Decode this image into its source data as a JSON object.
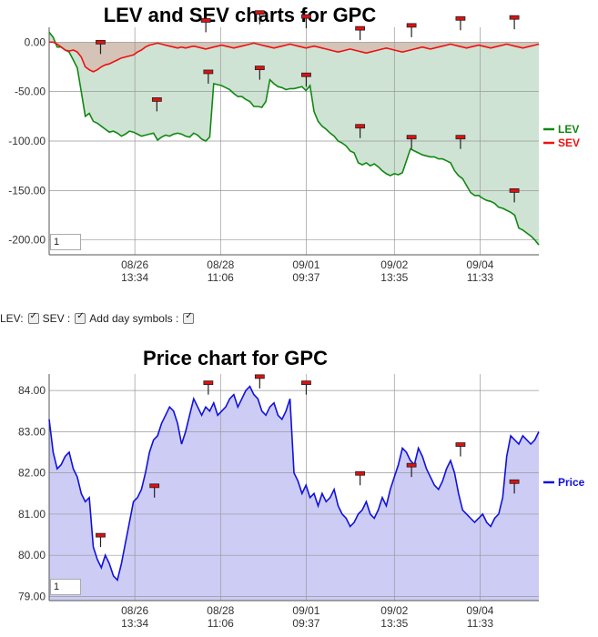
{
  "titles": {
    "top": "LEV and SEV charts for GPC",
    "bottom": "Price chart for GPC"
  },
  "controls": {
    "lev_label": "LEV:",
    "sev_label": "SEV :",
    "day_symbols_label": "Add day symbols :",
    "lev_checked": true,
    "sev_checked": true,
    "day_symbols_checked": true
  },
  "inputs": {
    "top_value": "1",
    "bottom_value": "1"
  },
  "colors": {
    "lev": "#118811",
    "sev": "#ee1111",
    "price": "#1111dd",
    "lev_fill": "#cfe3d4",
    "sev_fill": "#d4bfb2",
    "price_fill": "#ccccf5",
    "marker": "#dd1111"
  },
  "chart_data": [
    {
      "type": "line",
      "title": "LEV and SEV charts for GPC",
      "ylim": [
        -215,
        15
      ],
      "y_ticks": [
        "0.00",
        "-50.00",
        "-100.00",
        "-150.00",
        "-200.00"
      ],
      "x_ticks": [
        [
          "08/26",
          "13:34"
        ],
        [
          "08/28",
          "11:06"
        ],
        [
          "09/01",
          "09:37"
        ],
        [
          "09/02",
          "13:35"
        ],
        [
          "09/04",
          "11:33"
        ]
      ],
      "legend": "right",
      "grid": true,
      "series": [
        {
          "name": "LEV",
          "values": [
            10,
            5,
            -5,
            -5,
            -8,
            -10,
            -18,
            -26,
            -50,
            -75,
            -72,
            -80,
            -82,
            -85,
            -88,
            -91,
            -90,
            -92,
            -95,
            -93,
            -90,
            -91,
            -93,
            -95,
            -94,
            -93,
            -92,
            -99,
            -96,
            -94,
            -95,
            -93,
            -92,
            -93,
            -95,
            -96,
            -92,
            -94,
            -98,
            -100,
            -96,
            -42,
            -43,
            -44,
            -46,
            -48,
            -52,
            -55,
            -55,
            -58,
            -60,
            -65,
            -65,
            -66,
            -60,
            -38,
            -42,
            -45,
            -46,
            -48,
            -47,
            -47,
            -46,
            -45,
            -49,
            -44,
            -70,
            -80,
            -85,
            -88,
            -92,
            -95,
            -100,
            -102,
            -105,
            -110,
            -112,
            -122,
            -124,
            -122,
            -125,
            -123,
            -126,
            -130,
            -133,
            -135,
            -133,
            -134,
            -132,
            -120,
            -108,
            -110,
            -112,
            -114,
            -115,
            -116,
            -116,
            -118,
            -118,
            -120,
            -122,
            -130,
            -135,
            -138,
            -145,
            -152,
            -155,
            -155,
            -158,
            -160,
            -161,
            -163,
            -167,
            -168,
            -170,
            -172,
            -175,
            -188,
            -190,
            -193,
            -196,
            -200,
            -205
          ]
        },
        {
          "name": "SEV",
          "values": [
            0,
            0,
            -2,
            -5,
            -8,
            -9,
            -8,
            -10,
            -15,
            -25,
            -28,
            -30,
            -28,
            -25,
            -23,
            -22,
            -20,
            -18,
            -16,
            -15,
            -14,
            -13,
            -10,
            -8,
            -5,
            -3,
            -2,
            -1,
            -2,
            -3,
            -4,
            -5,
            -6,
            -5,
            -6,
            -5,
            -4,
            -5,
            -6,
            -7,
            -6,
            -5,
            -4,
            -3,
            -4,
            -5,
            -6,
            -5,
            -4,
            -3,
            -2,
            -1,
            -2,
            -3,
            -4,
            -5,
            -6,
            -5,
            -4,
            -3,
            -2,
            -3,
            -4,
            -5,
            -6,
            -5,
            -4,
            -5,
            -6,
            -7,
            -8,
            -9,
            -10,
            -9,
            -8,
            -7,
            -8,
            -9,
            -10,
            -11,
            -10,
            -9,
            -8,
            -7,
            -6,
            -7,
            -8,
            -9,
            -10,
            -9,
            -8,
            -7,
            -6,
            -5,
            -6,
            -7,
            -6,
            -5,
            -4,
            -3,
            -2,
            -3,
            -4,
            -5,
            -6,
            -5,
            -4,
            -3,
            -4,
            -5,
            -6,
            -5,
            -4,
            -3,
            -2,
            -3,
            -4,
            -5,
            -6,
            -5,
            -4,
            -3,
            -2
          ]
        }
      ],
      "day_markers": [
        [
          0.105,
          -12
        ],
        [
          0.22,
          -70
        ],
        [
          0.32,
          10
        ],
        [
          0.325,
          -42
        ],
        [
          0.43,
          18
        ],
        [
          0.43,
          -38
        ],
        [
          0.525,
          14
        ],
        [
          0.525,
          -45
        ],
        [
          0.635,
          2
        ],
        [
          0.635,
          -97
        ],
        [
          0.74,
          5
        ],
        [
          0.74,
          -108
        ],
        [
          0.84,
          12
        ],
        [
          0.84,
          -108
        ],
        [
          0.95,
          13
        ],
        [
          0.95,
          -162
        ]
      ]
    },
    {
      "type": "area",
      "title": "Price chart for GPC",
      "ylim": [
        78.9,
        84.4
      ],
      "y_ticks": [
        "84.00",
        "83.00",
        "82.00",
        "81.00",
        "80.00",
        "79.00"
      ],
      "x_ticks": [
        [
          "08/26",
          "13:34"
        ],
        [
          "08/28",
          "11:06"
        ],
        [
          "09/01",
          "09:37"
        ],
        [
          "09/02",
          "13:35"
        ],
        [
          "09/04",
          "11:33"
        ]
      ],
      "legend": "right",
      "grid": true,
      "series": [
        {
          "name": "Price",
          "values": [
            83.3,
            82.5,
            82.1,
            82.2,
            82.4,
            82.5,
            82.1,
            81.9,
            81.5,
            81.3,
            81.4,
            80.2,
            79.9,
            79.7,
            80.0,
            79.8,
            79.5,
            79.4,
            79.8,
            80.3,
            80.8,
            81.3,
            81.4,
            81.6,
            82.0,
            82.5,
            82.8,
            82.9,
            83.2,
            83.4,
            83.6,
            83.5,
            83.2,
            82.7,
            83.0,
            83.4,
            83.8,
            83.6,
            83.4,
            83.6,
            83.5,
            83.7,
            83.4,
            83.5,
            83.6,
            83.8,
            83.9,
            83.6,
            83.8,
            84.0,
            84.1,
            83.9,
            83.8,
            83.5,
            83.4,
            83.6,
            83.7,
            83.4,
            83.3,
            83.5,
            83.8,
            82.0,
            81.8,
            81.5,
            81.7,
            81.4,
            81.5,
            81.2,
            81.5,
            81.3,
            81.4,
            81.6,
            81.2,
            81.0,
            80.9,
            80.7,
            80.8,
            81.0,
            81.1,
            81.3,
            81.0,
            80.9,
            81.1,
            81.4,
            81.2,
            81.6,
            81.9,
            82.2,
            82.6,
            82.5,
            82.3,
            82.2,
            82.6,
            82.4,
            82.1,
            81.9,
            81.7,
            81.6,
            81.8,
            82.1,
            82.3,
            82.0,
            81.5,
            81.1,
            81.0,
            80.9,
            80.8,
            80.9,
            81.0,
            80.8,
            80.7,
            80.9,
            81.0,
            81.4,
            82.4,
            82.9,
            82.8,
            82.7,
            82.9,
            82.8,
            82.7,
            82.8,
            83.0
          ]
        }
      ],
      "day_markers": [
        [
          0.105,
          80.2
        ],
        [
          0.215,
          81.4
        ],
        [
          0.325,
          83.9
        ],
        [
          0.43,
          84.05
        ],
        [
          0.525,
          83.9
        ],
        [
          0.635,
          81.7
        ],
        [
          0.74,
          81.9
        ],
        [
          0.84,
          82.4
        ],
        [
          0.95,
          81.5
        ]
      ]
    }
  ]
}
